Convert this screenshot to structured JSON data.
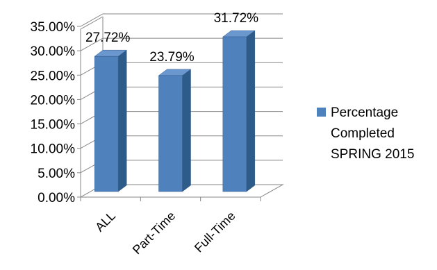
{
  "chart_data": {
    "type": "bar",
    "style": "3d-column",
    "categories": [
      "ALL",
      "Part-Time",
      "Full-Time"
    ],
    "series": [
      {
        "name": "Percentage Completed SPRING 2015",
        "values": [
          27.72,
          23.79,
          31.72
        ],
        "value_labels": [
          "27.72%",
          "23.79%",
          "31.72%"
        ],
        "color": "#4F81BD"
      }
    ],
    "ylim": [
      0,
      35
    ],
    "y_ticks": [
      0,
      5,
      10,
      15,
      20,
      25,
      30,
      35
    ],
    "y_tick_labels": [
      "0.00%",
      "5.00%",
      "10.00%",
      "15.00%",
      "20.00%",
      "25.00%",
      "30.00%",
      "35.00%"
    ],
    "grid": true,
    "legend": {
      "position": "right",
      "lines": [
        "Percentage",
        "Completed",
        "SPRING 2015"
      ]
    },
    "title": "",
    "xlabel": "",
    "ylabel": ""
  }
}
